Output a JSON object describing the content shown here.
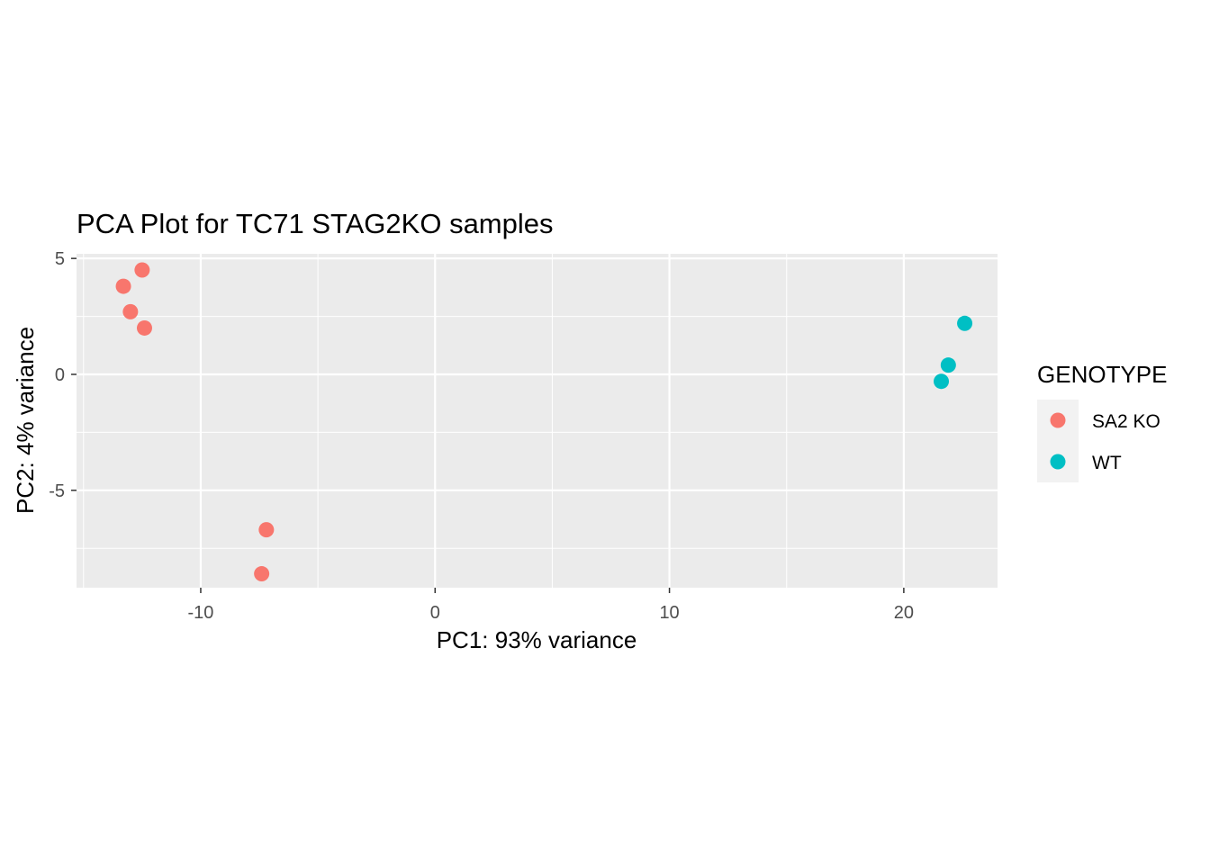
{
  "chart_data": {
    "type": "scatter",
    "title": "PCA Plot for TC71 STAG2KO samples",
    "xlabel": "PC1: 93% variance",
    "ylabel": "PC2: 4% variance",
    "xlim": [
      -15.3,
      24.0
    ],
    "ylim": [
      -9.2,
      5.2
    ],
    "x_ticks": [
      -10,
      0,
      10,
      20
    ],
    "x_tick_labels": [
      "-10",
      "0",
      "10",
      "20"
    ],
    "y_ticks": [
      -5,
      0,
      5
    ],
    "y_tick_labels": [
      "-5",
      "0",
      "5"
    ],
    "grid": true,
    "panel_background": "#ebebeb",
    "legend": {
      "title": "GENOTYPE",
      "position": "right"
    },
    "series": [
      {
        "name": "SA2 KO",
        "color": "#f8766d",
        "points": [
          {
            "x": -13.3,
            "y": 3.8
          },
          {
            "x": -12.5,
            "y": 4.5
          },
          {
            "x": -13.0,
            "y": 2.7
          },
          {
            "x": -12.4,
            "y": 2.0
          },
          {
            "x": -7.2,
            "y": -6.7
          },
          {
            "x": -7.4,
            "y": -8.6
          }
        ]
      },
      {
        "name": "WT",
        "color": "#00bfc4",
        "points": [
          {
            "x": 22.6,
            "y": 2.2
          },
          {
            "x": 21.9,
            "y": 0.4
          },
          {
            "x": 21.6,
            "y": -0.3
          }
        ]
      }
    ]
  }
}
